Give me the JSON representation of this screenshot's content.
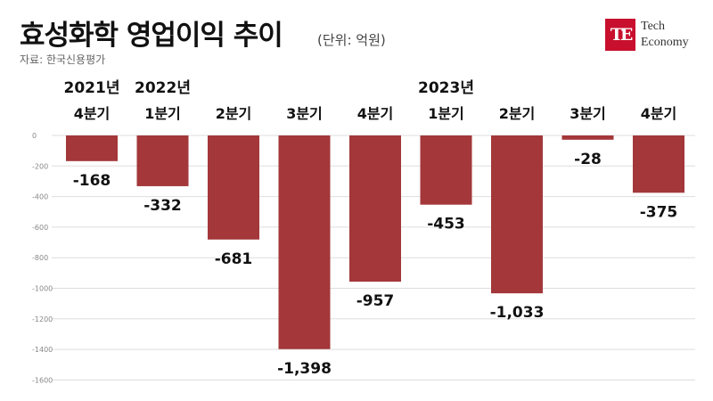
{
  "title": "효성화학 영업이익 추이",
  "unit": "(단위: 억원)",
  "source": "자료: 한국신용평가",
  "logo": {
    "line1": "Tech",
    "line2": "Economy",
    "mark": "TE"
  },
  "colors": {
    "bar": "#a3373a",
    "grid": "#dddddd"
  },
  "chart_data": {
    "type": "bar",
    "years": [
      {
        "label": "2021년",
        "index": 0
      },
      {
        "label": "2022년",
        "index": 1
      },
      {
        "label": "2023년",
        "index": 5
      }
    ],
    "categories": [
      "4분기",
      "1분기",
      "2분기",
      "3분기",
      "4분기",
      "1분기",
      "2분기",
      "3분기",
      "4분기"
    ],
    "values": [
      -168,
      -332,
      -681,
      -1398,
      -957,
      -453,
      -1033,
      -28,
      -375
    ],
    "value_labels": [
      "-168",
      "-332",
      "-681",
      "-1,398",
      "-957",
      "-453",
      "-1,033",
      "-28",
      "-375"
    ],
    "yticks": [
      0,
      -200,
      -400,
      -600,
      -800,
      -1000,
      -1200,
      -1400,
      -1600
    ],
    "ytick_labels": [
      "0",
      "-200",
      "-400",
      "-600",
      "-800",
      "-1000",
      "-1200",
      "-1400",
      "-1600"
    ],
    "ylim": [
      -1600,
      0
    ],
    "grid": true
  }
}
